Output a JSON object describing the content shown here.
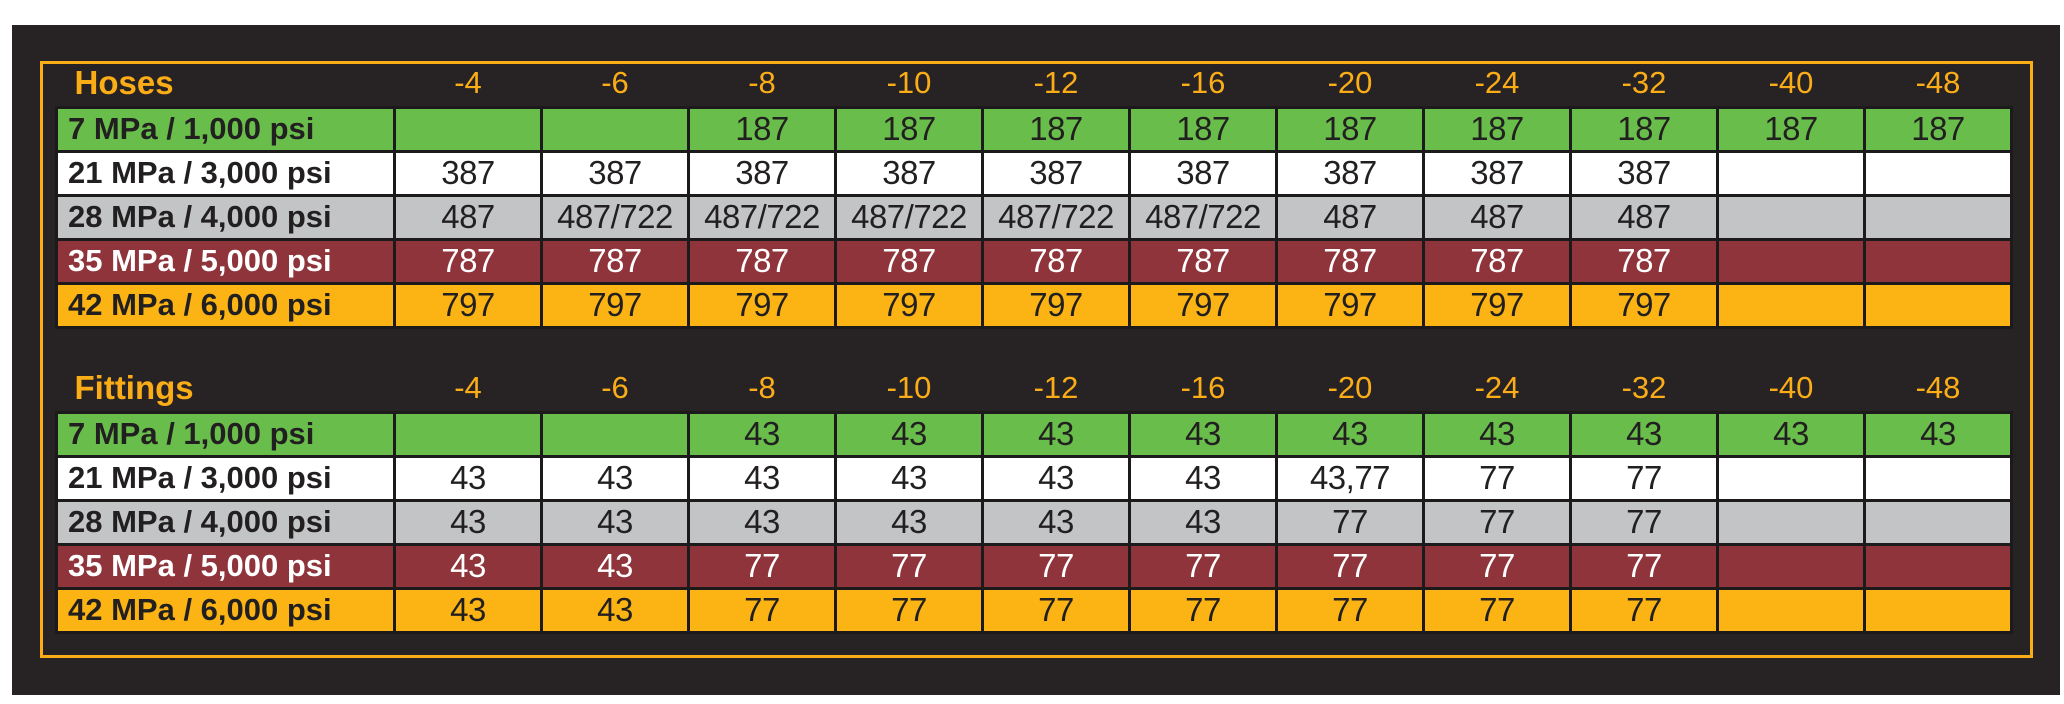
{
  "colors": {
    "page_bg": "#FFFFFF",
    "panel_bg": "#272223",
    "accent": "#FBAD18",
    "line": "#1D1A1B",
    "row_green": "#69BE4B",
    "row_white": "#FFFFFF",
    "row_gray": "#C2C4C6",
    "row_red": "#8E343A",
    "row_orange": "#FBB414",
    "text_dark": "#221F20",
    "text_light": "#FFFFFF"
  },
  "chart_data": [
    {
      "type": "table",
      "id": "hoses",
      "title": "Hoses",
      "columns": [
        "-4",
        "-6",
        "-8",
        "-10",
        "-12",
        "-16",
        "-20",
        "-24",
        "-32",
        "-40",
        "-48"
      ],
      "rows": [
        {
          "label": "7 MPa / 1,000 psi",
          "style": "green",
          "values": [
            "",
            "",
            "187",
            "187",
            "187",
            "187",
            "187",
            "187",
            "187",
            "187",
            "187"
          ]
        },
        {
          "label": "21 MPa / 3,000 psi",
          "style": "white",
          "values": [
            "387",
            "387",
            "387",
            "387",
            "387",
            "387",
            "387",
            "387",
            "387",
            "",
            ""
          ]
        },
        {
          "label": "28 MPa / 4,000 psi",
          "style": "gray",
          "values": [
            "487",
            "487/722",
            "487/722",
            "487/722",
            "487/722",
            "487/722",
            "487",
            "487",
            "487",
            "",
            ""
          ]
        },
        {
          "label": "35 MPa / 5,000 psi",
          "style": "red",
          "values": [
            "787",
            "787",
            "787",
            "787",
            "787",
            "787",
            "787",
            "787",
            "787",
            "",
            ""
          ]
        },
        {
          "label": "42 MPa / 6,000 psi",
          "style": "orange",
          "values": [
            "797",
            "797",
            "797",
            "797",
            "797",
            "797",
            "797",
            "797",
            "797",
            "",
            ""
          ]
        }
      ]
    },
    {
      "type": "table",
      "id": "fittings",
      "title": "Fittings",
      "columns": [
        "-4",
        "-6",
        "-8",
        "-10",
        "-12",
        "-16",
        "-20",
        "-24",
        "-32",
        "-40",
        "-48"
      ],
      "rows": [
        {
          "label": "7 MPa / 1,000 psi",
          "style": "green",
          "values": [
            "",
            "",
            "43",
            "43",
            "43",
            "43",
            "43",
            "43",
            "43",
            "43",
            "43"
          ]
        },
        {
          "label": "21 MPa / 3,000 psi",
          "style": "white",
          "values": [
            "43",
            "43",
            "43",
            "43",
            "43",
            "43",
            "43,77",
            "77",
            "77",
            "",
            ""
          ]
        },
        {
          "label": "28 MPa / 4,000 psi",
          "style": "gray",
          "values": [
            "43",
            "43",
            "43",
            "43",
            "43",
            "43",
            "77",
            "77",
            "77",
            "",
            ""
          ]
        },
        {
          "label": "35 MPa / 5,000 psi",
          "style": "red",
          "values": [
            "43",
            "43",
            "77",
            "77",
            "77",
            "77",
            "77",
            "77",
            "77",
            "",
            ""
          ]
        },
        {
          "label": "42 MPa / 6,000 psi",
          "style": "orange",
          "values": [
            "43",
            "43",
            "77",
            "77",
            "77",
            "77",
            "77",
            "77",
            "77",
            "",
            ""
          ]
        }
      ]
    }
  ]
}
